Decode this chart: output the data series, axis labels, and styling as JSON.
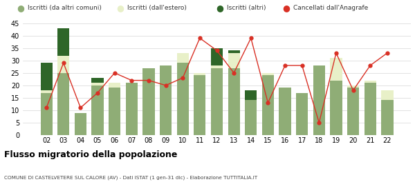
{
  "years": [
    "02",
    "03",
    "04",
    "05",
    "06",
    "07",
    "08",
    "09",
    "10",
    "11",
    "12",
    "13",
    "14",
    "15",
    "16",
    "17",
    "18",
    "19",
    "20",
    "21",
    "22"
  ],
  "iscritti_altri_comuni": [
    17,
    25,
    9,
    20,
    19,
    21,
    27,
    28,
    29,
    24,
    27,
    27,
    14,
    24,
    19,
    17,
    28,
    22,
    19,
    21,
    14
  ],
  "iscritti_estero": [
    1,
    7,
    0,
    1,
    2,
    0,
    0,
    0,
    4,
    1,
    1,
    6,
    0,
    1,
    0,
    0,
    0,
    9,
    1,
    1,
    4
  ],
  "iscritti_altri": [
    11,
    11,
    0,
    2,
    0,
    0,
    0,
    0,
    0,
    0,
    7,
    1,
    4,
    0,
    0,
    0,
    0,
    0,
    0,
    0,
    0
  ],
  "cancellati": [
    11,
    29,
    11,
    17,
    25,
    22,
    22,
    20,
    23,
    39,
    34,
    25,
    39,
    13,
    28,
    28,
    5,
    33,
    18,
    28,
    33
  ],
  "color_altri_comuni": "#8fad76",
  "color_estero": "#e8f0c8",
  "color_altri": "#2e6628",
  "color_cancellati": "#d93025",
  "color_grid": "#dddddd",
  "color_bg": "#ffffff",
  "ylim": [
    0,
    45
  ],
  "yticks": [
    0,
    5,
    10,
    15,
    20,
    25,
    30,
    35,
    40,
    45
  ],
  "title": "Flusso migratorio della popolazione",
  "subtitle": "COMUNE DI CASTELVETERE SUL CALORE (AV) - Dati ISTAT (1 gen-31 dic) - Elaborazione TUTTITALIA.IT",
  "legend_labels": [
    "Iscritti (da altri comuni)",
    "Iscritti (dall'estero)",
    "Iscritti (altri)",
    "Cancellati dall'Anagrafe"
  ]
}
